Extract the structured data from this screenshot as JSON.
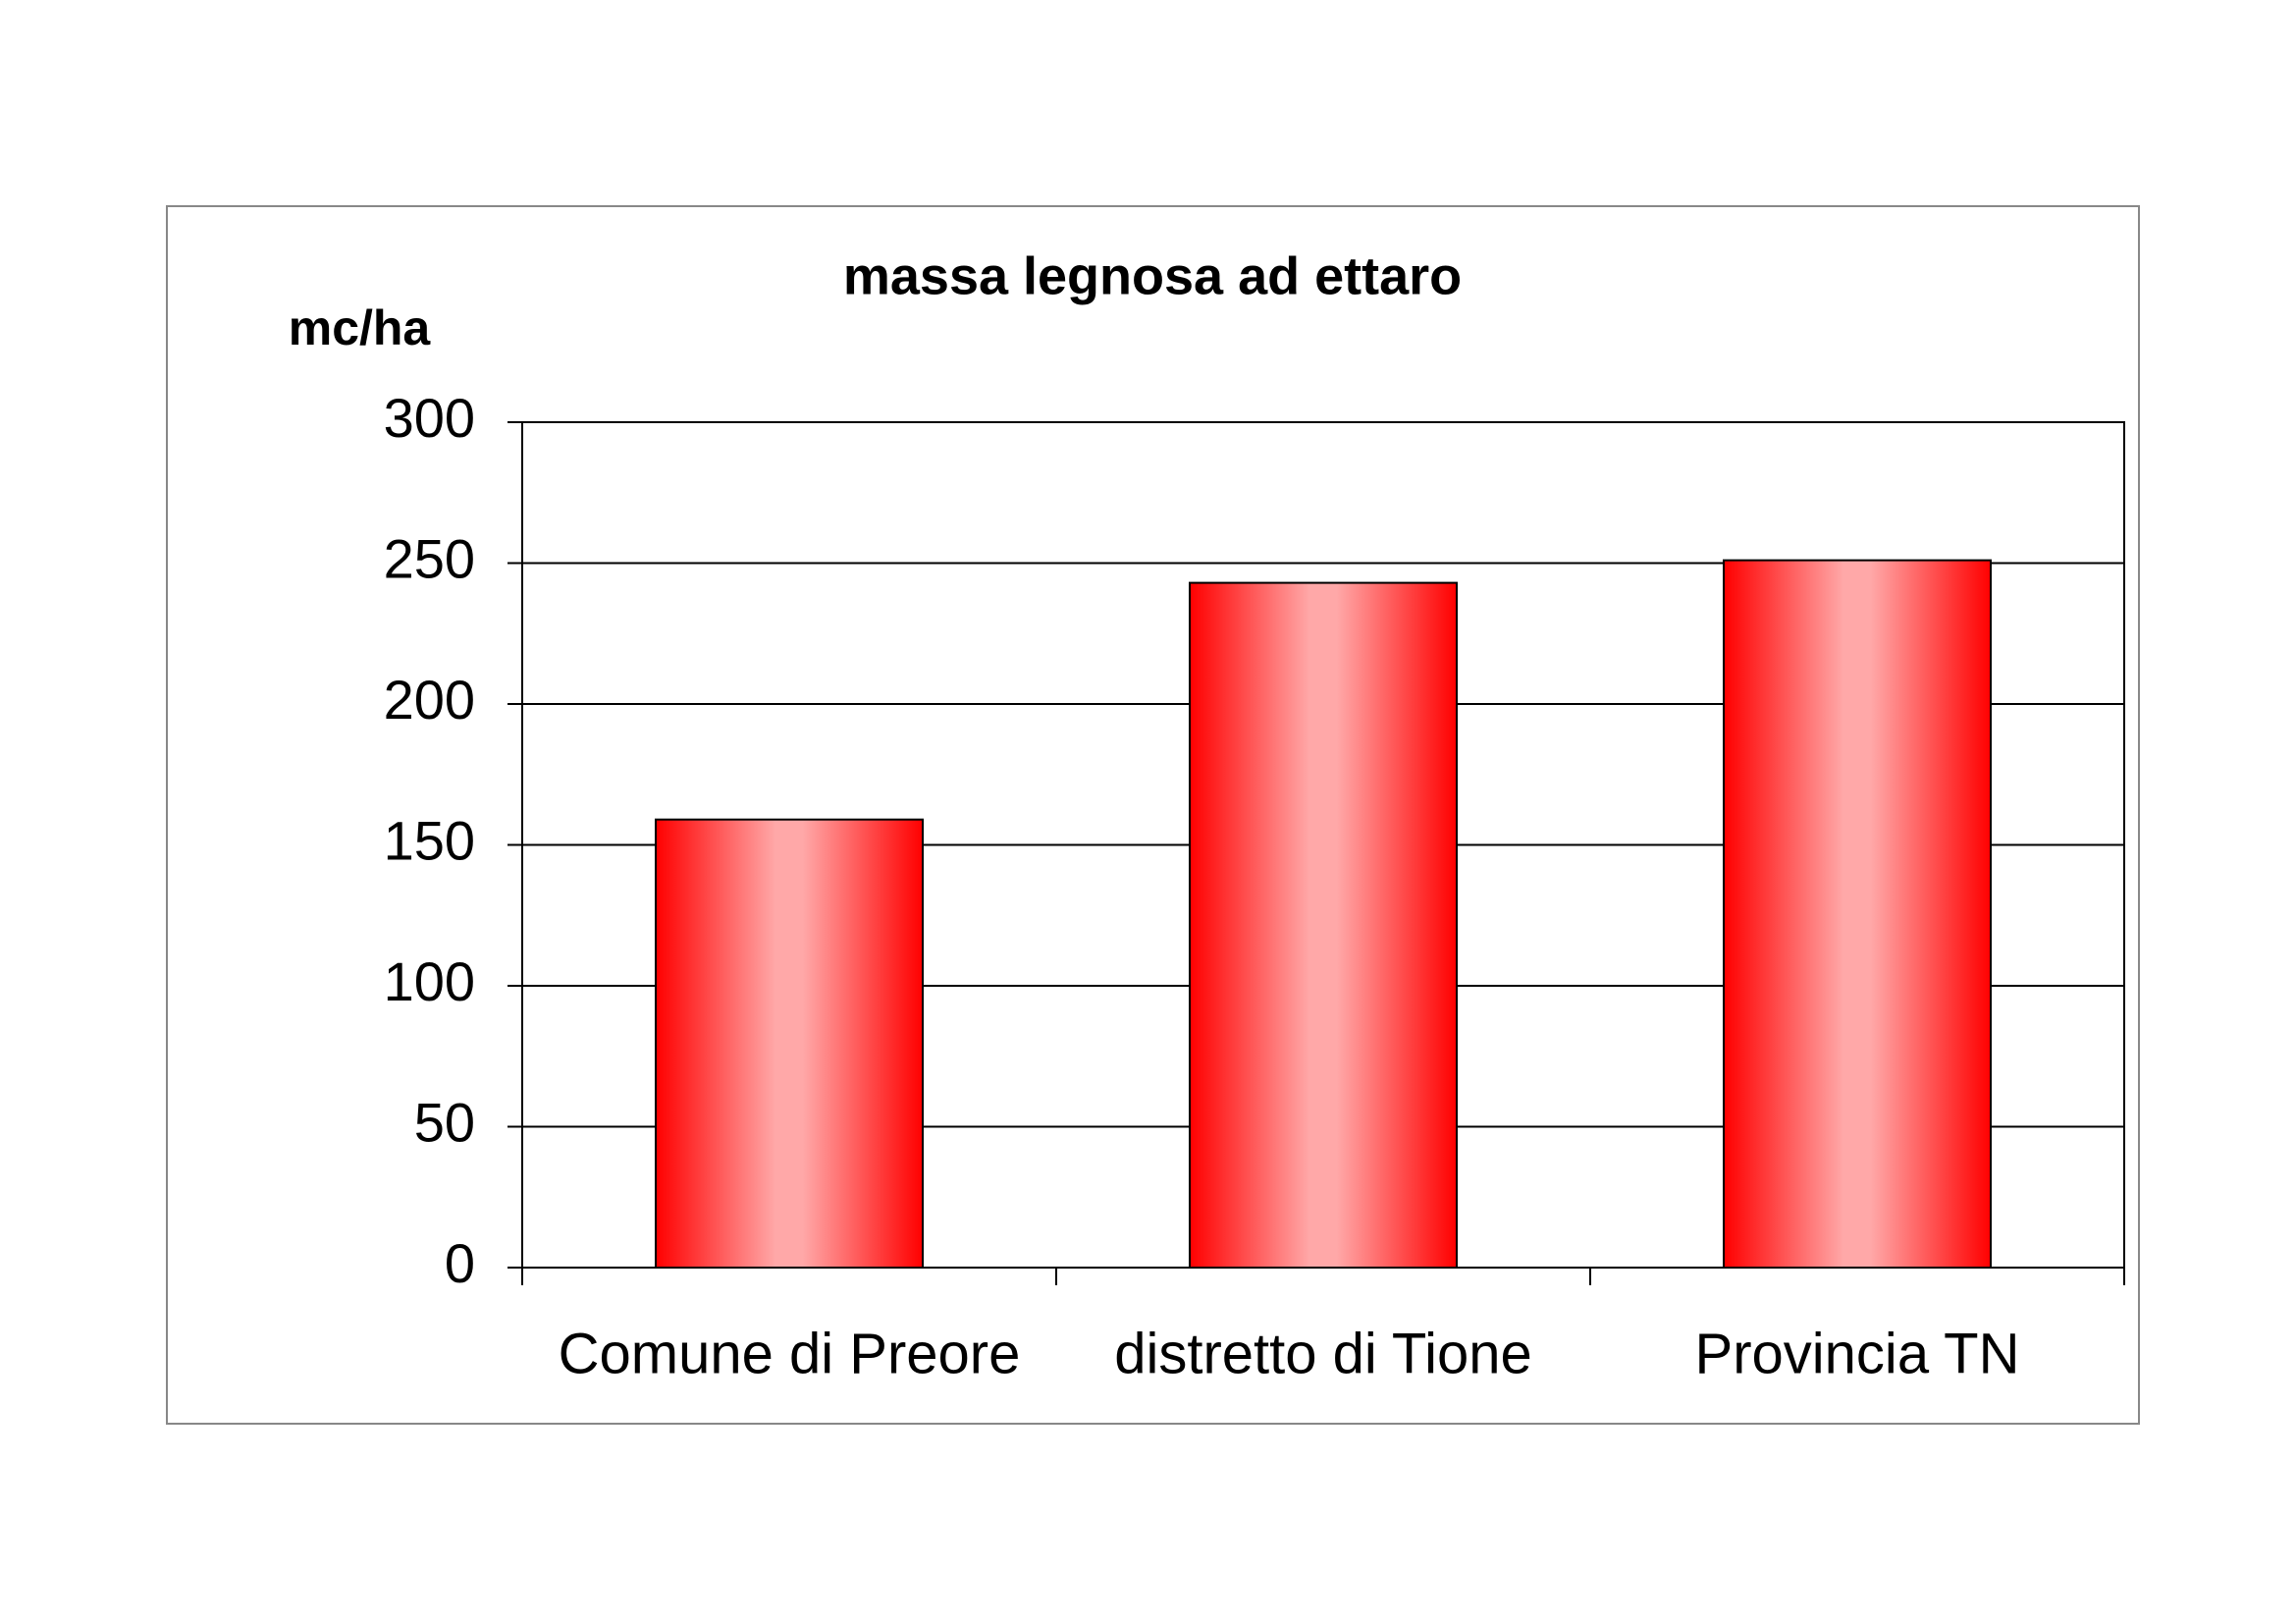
{
  "chart_data": {
    "type": "bar",
    "title": "massa legnosa ad ettaro",
    "y_label": "mc/ha",
    "categories": [
      "Comune di Preore",
      "distretto di Tione",
      "Provincia TN"
    ],
    "values": [
      159,
      243,
      251
    ],
    "color": "#ff0000",
    "ylim": [
      0,
      300
    ],
    "yticks": [
      0,
      50,
      100,
      150,
      200,
      250,
      300
    ],
    "grid": true
  }
}
